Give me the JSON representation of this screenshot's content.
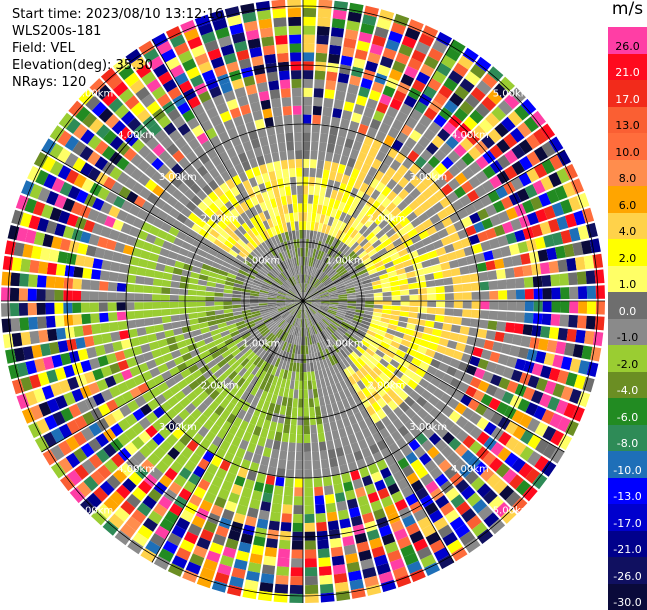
{
  "header": {
    "start_time": "Start time: 2023/08/10 13:12:16",
    "station": "WLS200s-181",
    "field": "Field: VEL",
    "elevation": "Elevation(deg): 35.30",
    "nrays": "NRays: 120"
  },
  "colorbar": {
    "unit": "m/s",
    "entries": [
      {
        "label": "26.0",
        "color": "#ff3ea5"
      },
      {
        "label": "21.0",
        "color": "#ff0a1e"
      },
      {
        "label": "17.0",
        "color": "#f22b1b"
      },
      {
        "label": "13.0",
        "color": "#fa5f33"
      },
      {
        "label": "10.0",
        "color": "#ff6d3c"
      },
      {
        "label": "8.0",
        "color": "#ff8d4d"
      },
      {
        "label": "6.0",
        "color": "#ffa500"
      },
      {
        "label": "4.0",
        "color": "#ffd24a"
      },
      {
        "label": "2.0",
        "color": "#ffff00"
      },
      {
        "label": "1.0",
        "color": "#ffff66"
      },
      {
        "label": "0.0",
        "color": "#6e6e6e"
      },
      {
        "label": "-1.0",
        "color": "#8a8a8a"
      },
      {
        "label": "-2.0",
        "color": "#9acd32"
      },
      {
        "label": "-4.0",
        "color": "#6b8e23"
      },
      {
        "label": "-6.0",
        "color": "#228b22"
      },
      {
        "label": "-8.0",
        "color": "#2e8b57"
      },
      {
        "label": "-10.0",
        "color": "#1e6fb8"
      },
      {
        "label": "-13.0",
        "color": "#0000ff"
      },
      {
        "label": "-17.0",
        "color": "#0000cd"
      },
      {
        "label": "-21.0",
        "color": "#00008b"
      },
      {
        "label": "-26.0",
        "color": "#101060"
      },
      {
        "label": "-30.0",
        "color": "#0a0a3a"
      }
    ]
  },
  "range_rings": [
    {
      "label": "1.00km"
    },
    {
      "label": "2.00km"
    },
    {
      "label": "3.00km"
    },
    {
      "label": "4.00km"
    },
    {
      "label": "5.00km"
    }
  ]
}
